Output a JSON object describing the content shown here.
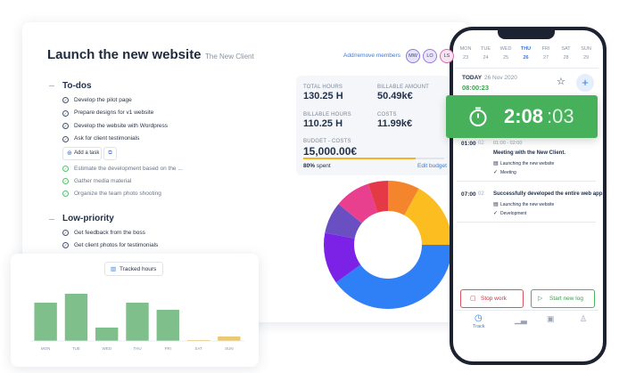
{
  "project": {
    "title": "Launch the new website",
    "client": "The New Client",
    "add_members": "Add/remove members",
    "members": [
      "MW",
      "LO",
      "LS"
    ]
  },
  "todos": {
    "heading": "To-dos",
    "items": [
      "Develop the pilot page",
      "Prepare designs for v1 website",
      "Develop the website with Wordpress",
      "Ask for client testimonials"
    ],
    "add_task": "Add a task",
    "done_items": [
      "Estimate the development based on the ...",
      "Gather media material",
      "Organize the team photo shooting"
    ]
  },
  "low_priority": {
    "heading": "Low-priority",
    "items": [
      "Get feedback from the boss",
      "Get client photos for testimonials"
    ]
  },
  "stats": {
    "total_hours": {
      "label": "TOTAL HOURS",
      "value": "130.25 H"
    },
    "billable_amount": {
      "label": "BILLABLE AMOUNT",
      "value": "50.49k€"
    },
    "billable_hours": {
      "label": "BILLABLE HOURS",
      "value": "110.25 H"
    },
    "costs": {
      "label": "COSTS",
      "value": "11.99k€"
    },
    "budget": {
      "label": "BUDGET - COSTS",
      "value": "15,000.00€"
    },
    "spent": {
      "value": 80,
      "label": "80%",
      "text": "spent"
    },
    "edit_budget": "Edit budget"
  },
  "donut": {
    "type": "pie",
    "values": [
      8,
      17,
      40,
      13,
      8,
      9,
      5
    ],
    "colors": [
      "#f5852d",
      "#fbbd1f",
      "#2f80f6",
      "#7b22e6",
      "#6a4fc2",
      "#e8408f",
      "#e43a48"
    ]
  },
  "tracked_hours": {
    "type": "bar",
    "title": "Tracked hours",
    "categories": [
      "MON",
      "TUE",
      "WED",
      "THU",
      "FRI",
      "SAT",
      "SUN"
    ],
    "values": [
      43,
      53,
      15,
      43,
      35,
      1,
      5
    ],
    "colors": [
      "#7fbf8c",
      "#7fbf8c",
      "#7fbf8c",
      "#7fbf8c",
      "#7fbf8c",
      "#ecc970",
      "#ecc970"
    ],
    "ylim": [
      0,
      65
    ]
  },
  "phone": {
    "days": [
      "MON",
      "TUE",
      "WED",
      "THU",
      "FRI",
      "SAT",
      "SUN"
    ],
    "dates": [
      "23",
      "24",
      "25",
      "26",
      "27",
      "28",
      "29"
    ],
    "today_label": "TODAY",
    "today_date": "26 Nov 2020",
    "today_time": "08:00:23",
    "timer_main": "2:08",
    "timer_seconds": ":03",
    "entries": [
      {
        "time": "01:00",
        "count": "02",
        "range": "01:00 - 02:00",
        "title": "Meeting with the New Client.",
        "project": "Launching the new website",
        "tag": "Meeting"
      },
      {
        "time": "07:00",
        "count": "02",
        "title": "Successfully developed the entire web app.",
        "project": "Launching the new website",
        "tag": "Development"
      }
    ],
    "stop": "Stop work",
    "start": "Start new log",
    "nav_track": "Track"
  }
}
